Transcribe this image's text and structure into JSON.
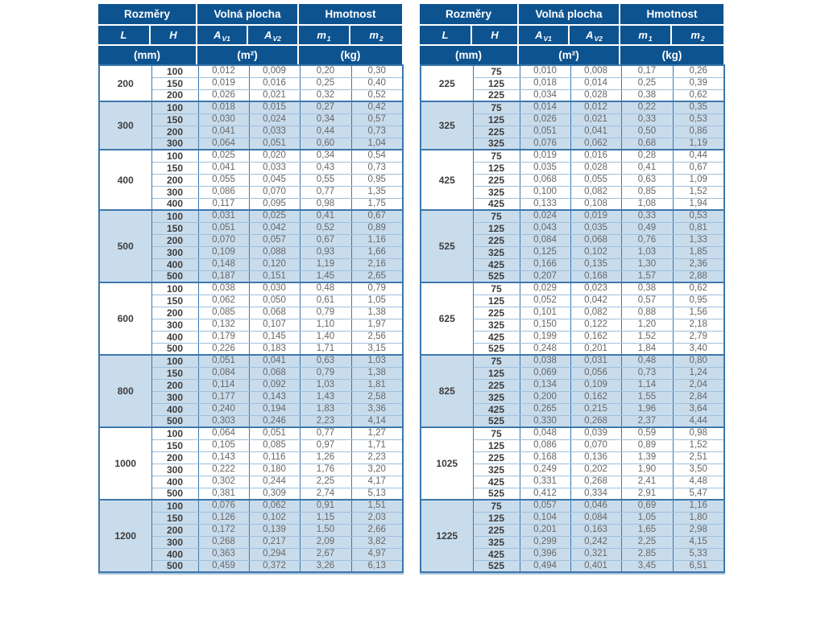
{
  "header": {
    "groups": [
      {
        "label": "Rozměry",
        "span": 2
      },
      {
        "label": "Volná plocha",
        "span": 2
      },
      {
        "label": "Hmotnost",
        "span": 2
      }
    ],
    "columns": [
      {
        "base": "L",
        "sub": ""
      },
      {
        "base": "H",
        "sub": ""
      },
      {
        "base": "A",
        "sub": "V1"
      },
      {
        "base": "A",
        "sub": "V2"
      },
      {
        "base": "m",
        "sub": "1"
      },
      {
        "base": "m",
        "sub": "2"
      }
    ],
    "units": [
      {
        "label": "(mm)",
        "span": 2
      },
      {
        "label": "(m²)",
        "span": 2
      },
      {
        "label": "(kg)",
        "span": 2
      }
    ]
  },
  "colors": {
    "header_bg": "#0d5390",
    "header_text": "#ffffff",
    "row_alt_bg": "#c9dcec",
    "grid_strong": "#3c78ad",
    "grid_light": "#9ec0dc",
    "value_text": "#666666",
    "label_text": "#3c3c3c"
  },
  "tables": [
    {
      "id": "left",
      "groups": [
        {
          "l": "200",
          "rows": [
            [
              "100",
              "0,012",
              "0,009",
              "0,20",
              "0,30"
            ],
            [
              "150",
              "0,019",
              "0,016",
              "0,25",
              "0,40"
            ],
            [
              "200",
              "0,026",
              "0,021",
              "0,32",
              "0,52"
            ]
          ]
        },
        {
          "l": "300",
          "rows": [
            [
              "100",
              "0,018",
              "0,015",
              "0,27",
              "0,42"
            ],
            [
              "150",
              "0,030",
              "0,024",
              "0,34",
              "0,57"
            ],
            [
              "200",
              "0,041",
              "0,033",
              "0,44",
              "0,73"
            ],
            [
              "300",
              "0,064",
              "0,051",
              "0,60",
              "1,04"
            ]
          ]
        },
        {
          "l": "400",
          "rows": [
            [
              "100",
              "0,025",
              "0,020",
              "0,34",
              "0,54"
            ],
            [
              "150",
              "0,041",
              "0,033",
              "0,43",
              "0,73"
            ],
            [
              "200",
              "0,055",
              "0,045",
              "0,55",
              "0,95"
            ],
            [
              "300",
              "0,086",
              "0,070",
              "0,77",
              "1,35"
            ],
            [
              "400",
              "0,117",
              "0,095",
              "0,98",
              "1,75"
            ]
          ]
        },
        {
          "l": "500",
          "rows": [
            [
              "100",
              "0,031",
              "0,025",
              "0,41",
              "0,67"
            ],
            [
              "150",
              "0,051",
              "0,042",
              "0,52",
              "0,89"
            ],
            [
              "200",
              "0,070",
              "0,057",
              "0,67",
              "1,16"
            ],
            [
              "300",
              "0,109",
              "0,088",
              "0,93",
              "1,66"
            ],
            [
              "400",
              "0,148",
              "0,120",
              "1,19",
              "2,16"
            ],
            [
              "500",
              "0,187",
              "0,151",
              "1,45",
              "2,65"
            ]
          ]
        },
        {
          "l": "600",
          "rows": [
            [
              "100",
              "0,038",
              "0,030",
              "0,48",
              "0,79"
            ],
            [
              "150",
              "0,062",
              "0,050",
              "0,61",
              "1,05"
            ],
            [
              "200",
              "0,085",
              "0,068",
              "0,79",
              "1,38"
            ],
            [
              "300",
              "0,132",
              "0,107",
              "1,10",
              "1,97"
            ],
            [
              "400",
              "0,179",
              "0,145",
              "1,40",
              "2,56"
            ],
            [
              "500",
              "0,226",
              "0,183",
              "1,71",
              "3,15"
            ]
          ]
        },
        {
          "l": "800",
          "rows": [
            [
              "100",
              "0,051",
              "0,041",
              "0,63",
              "1,03"
            ],
            [
              "150",
              "0,084",
              "0,068",
              "0,79",
              "1,38"
            ],
            [
              "200",
              "0,114",
              "0,092",
              "1,03",
              "1,81"
            ],
            [
              "300",
              "0,177",
              "0,143",
              "1,43",
              "2,58"
            ],
            [
              "400",
              "0,240",
              "0,194",
              "1,83",
              "3,36"
            ],
            [
              "500",
              "0,303",
              "0,246",
              "2,23",
              "4,14"
            ]
          ]
        },
        {
          "l": "1000",
          "rows": [
            [
              "100",
              "0,064",
              "0,051",
              "0,77",
              "1,27"
            ],
            [
              "150",
              "0,105",
              "0,085",
              "0,97",
              "1,71"
            ],
            [
              "200",
              "0,143",
              "0,116",
              "1,26",
              "2,23"
            ],
            [
              "300",
              "0,222",
              "0,180",
              "1,76",
              "3,20"
            ],
            [
              "400",
              "0,302",
              "0,244",
              "2,25",
              "4,17"
            ],
            [
              "500",
              "0,381",
              "0,309",
              "2,74",
              "5,13"
            ]
          ]
        },
        {
          "l": "1200",
          "rows": [
            [
              "100",
              "0,076",
              "0,062",
              "0,91",
              "1,51"
            ],
            [
              "150",
              "0,126",
              "0,102",
              "1,15",
              "2,03"
            ],
            [
              "200",
              "0,172",
              "0,139",
              "1,50",
              "2,66"
            ],
            [
              "300",
              "0,268",
              "0,217",
              "2,09",
              "3,82"
            ],
            [
              "400",
              "0,363",
              "0,294",
              "2,67",
              "4,97"
            ],
            [
              "500",
              "0,459",
              "0,372",
              "3,26",
              "6,13"
            ]
          ]
        }
      ]
    },
    {
      "id": "right",
      "groups": [
        {
          "l": "225",
          "rows": [
            [
              "75",
              "0,010",
              "0,008",
              "0,17",
              "0,26"
            ],
            [
              "125",
              "0,018",
              "0,014",
              "0,25",
              "0,39"
            ],
            [
              "225",
              "0,034",
              "0,028",
              "0,38",
              "0,62"
            ]
          ]
        },
        {
          "l": "325",
          "rows": [
            [
              "75",
              "0,014",
              "0,012",
              "0,22",
              "0,35"
            ],
            [
              "125",
              "0,026",
              "0,021",
              "0,33",
              "0,53"
            ],
            [
              "225",
              "0,051",
              "0,041",
              "0,50",
              "0,86"
            ],
            [
              "325",
              "0,076",
              "0,062",
              "0,68",
              "1,19"
            ]
          ]
        },
        {
          "l": "425",
          "rows": [
            [
              "75",
              "0,019",
              "0,016",
              "0,28",
              "0,44"
            ],
            [
              "125",
              "0,035",
              "0,028",
              "0,41",
              "0,67"
            ],
            [
              "225",
              "0,068",
              "0,055",
              "0,63",
              "1,09"
            ],
            [
              "325",
              "0,100",
              "0,082",
              "0,85",
              "1,52"
            ],
            [
              "425",
              "0,133",
              "0,108",
              "1,08",
              "1,94"
            ]
          ]
        },
        {
          "l": "525",
          "rows": [
            [
              "75",
              "0,024",
              "0,019",
              "0,33",
              "0,53"
            ],
            [
              "125",
              "0,043",
              "0,035",
              "0,49",
              "0,81"
            ],
            [
              "225",
              "0,084",
              "0,068",
              "0,76",
              "1,33"
            ],
            [
              "325",
              "0,125",
              "0,102",
              "1,03",
              "1,85"
            ],
            [
              "425",
              "0,166",
              "0,135",
              "1,30",
              "2,36"
            ],
            [
              "525",
              "0,207",
              "0,168",
              "1,57",
              "2,88"
            ]
          ]
        },
        {
          "l": "625",
          "rows": [
            [
              "75",
              "0,029",
              "0,023",
              "0,38",
              "0,62"
            ],
            [
              "125",
              "0,052",
              "0,042",
              "0,57",
              "0,95"
            ],
            [
              "225",
              "0,101",
              "0,082",
              "0,88",
              "1,56"
            ],
            [
              "325",
              "0,150",
              "0,122",
              "1,20",
              "2,18"
            ],
            [
              "425",
              "0,199",
              "0,162",
              "1,52",
              "2,79"
            ],
            [
              "525",
              "0,248",
              "0,201",
              "1,84",
              "3,40"
            ]
          ]
        },
        {
          "l": "825",
          "rows": [
            [
              "75",
              "0,038",
              "0,031",
              "0,48",
              "0,80"
            ],
            [
              "125",
              "0,069",
              "0,056",
              "0,73",
              "1,24"
            ],
            [
              "225",
              "0,134",
              "0,109",
              "1,14",
              "2,04"
            ],
            [
              "325",
              "0,200",
              "0,162",
              "1,55",
              "2,84"
            ],
            [
              "425",
              "0,265",
              "0,215",
              "1,96",
              "3,64"
            ],
            [
              "525",
              "0,330",
              "0,268",
              "2,37",
              "4,44"
            ]
          ]
        },
        {
          "l": "1025",
          "rows": [
            [
              "75",
              "0,048",
              "0,039",
              "0,59",
              "0,98"
            ],
            [
              "125",
              "0,086",
              "0,070",
              "0,89",
              "1,52"
            ],
            [
              "225",
              "0,168",
              "0,136",
              "1,39",
              "2,51"
            ],
            [
              "325",
              "0,249",
              "0,202",
              "1,90",
              "3,50"
            ],
            [
              "425",
              "0,331",
              "0,268",
              "2,41",
              "4,48"
            ],
            [
              "525",
              "0,412",
              "0,334",
              "2,91",
              "5,47"
            ]
          ]
        },
        {
          "l": "1225",
          "rows": [
            [
              "75",
              "0,057",
              "0,046",
              "0,69",
              "1,16"
            ],
            [
              "125",
              "0,104",
              "0,084",
              "1,05",
              "1,80"
            ],
            [
              "225",
              "0,201",
              "0,163",
              "1,65",
              "2,98"
            ],
            [
              "325",
              "0,299",
              "0,242",
              "2,25",
              "4,15"
            ],
            [
              "425",
              "0,396",
              "0,321",
              "2,85",
              "5,33"
            ],
            [
              "525",
              "0,494",
              "0,401",
              "3,45",
              "6,51"
            ]
          ]
        }
      ]
    }
  ]
}
